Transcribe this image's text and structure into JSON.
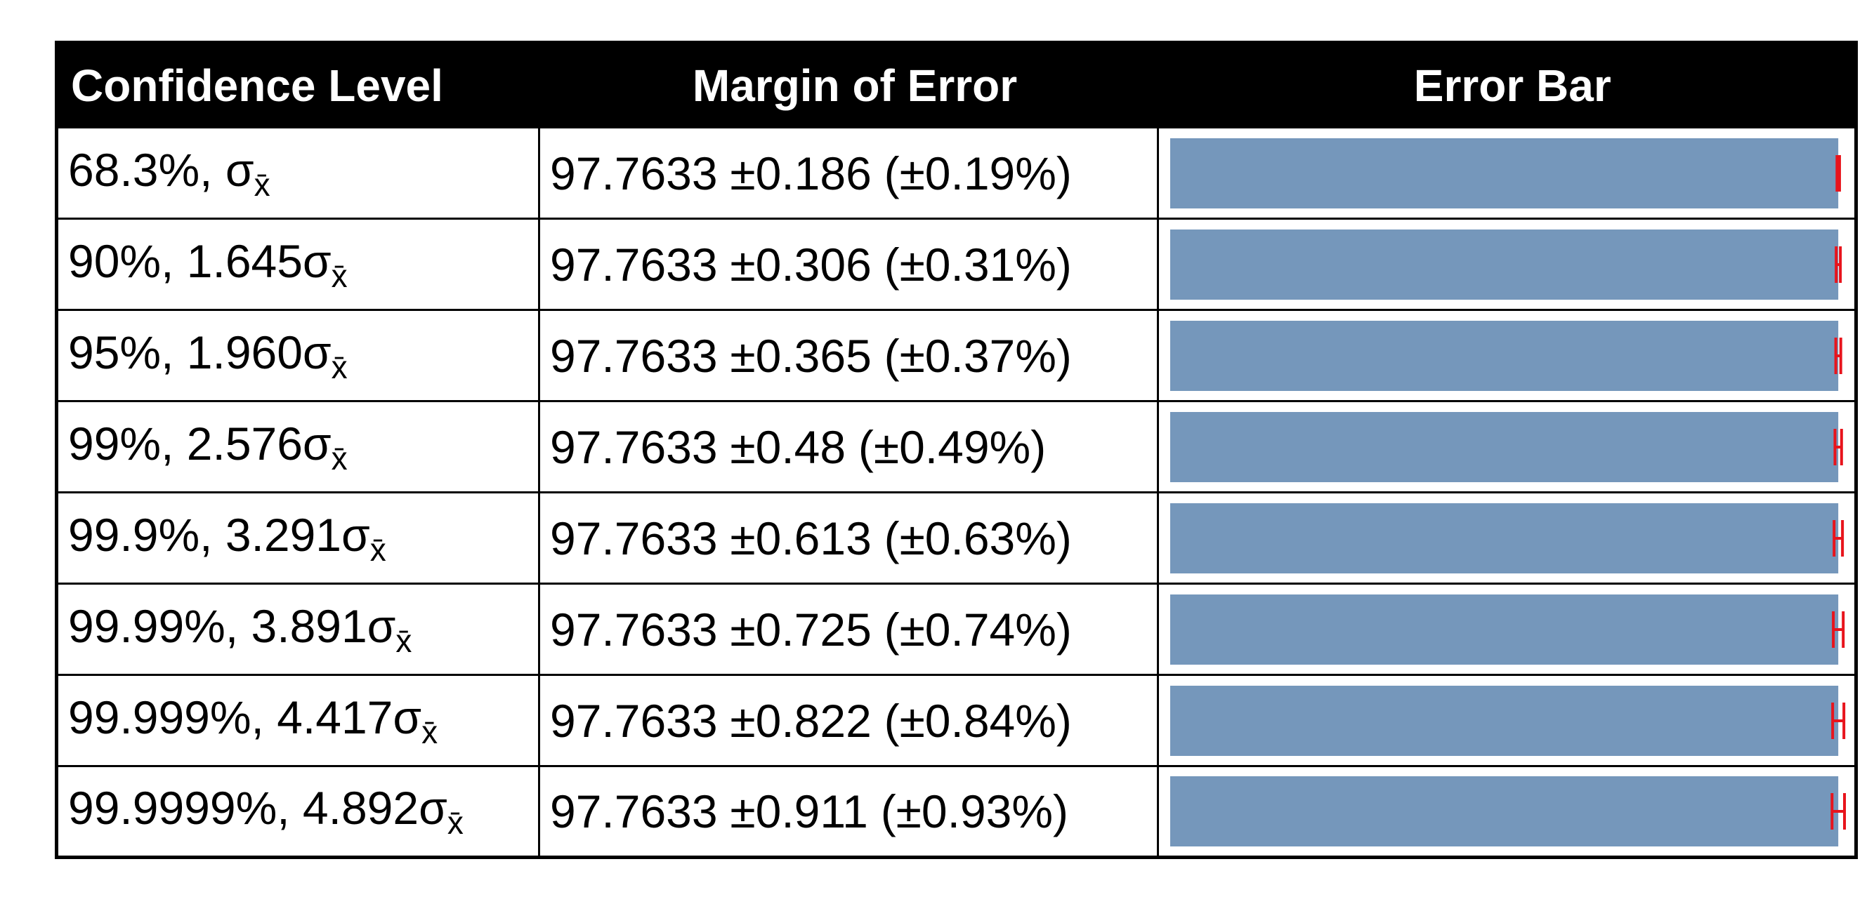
{
  "table": {
    "header": [
      "Confidence Level",
      "Margin of Error",
      "Error Bar"
    ],
    "rows": [
      {
        "level": "68.3%, σ",
        "level_sub": "x̄",
        "mean": 97.7633,
        "margin": 0.186,
        "margin_label": "±0.186",
        "relative": "(±0.19%)"
      },
      {
        "level": "90%, 1.645σ",
        "level_sub": "x̄",
        "mean": 97.7633,
        "margin": 0.306,
        "margin_label": "±0.306",
        "relative": "(±0.31%)"
      },
      {
        "level": "95%, 1.960σ",
        "level_sub": "x̄",
        "mean": 97.7633,
        "margin": 0.365,
        "margin_label": "±0.365",
        "relative": "(±0.37%)"
      },
      {
        "level": "99%, 2.576σ",
        "level_sub": "x̄",
        "mean": 97.7633,
        "margin": 0.48,
        "margin_label": "±0.48",
        "relative": "(±0.49%)"
      },
      {
        "level": "99.9%, 3.291σ",
        "level_sub": "x̄",
        "mean": 97.7633,
        "margin": 0.613,
        "margin_label": "±0.613",
        "relative": "(±0.63%)"
      },
      {
        "level": "99.99%, 3.891σ",
        "level_sub": "x̄",
        "mean": 97.7633,
        "margin": 0.725,
        "margin_label": "±0.725",
        "relative": "(±0.74%)"
      },
      {
        "level": "99.999%, 4.417σ",
        "level_sub": "x̄",
        "mean": 97.7633,
        "margin": 0.822,
        "margin_label": "±0.822",
        "relative": "(±0.84%)"
      },
      {
        "level": "99.9999%, 4.892σ",
        "level_sub": "x̄",
        "mean": 97.7633,
        "margin": 0.911,
        "margin_label": "±0.911",
        "relative": "(±0.93%)"
      }
    ]
  }
}
